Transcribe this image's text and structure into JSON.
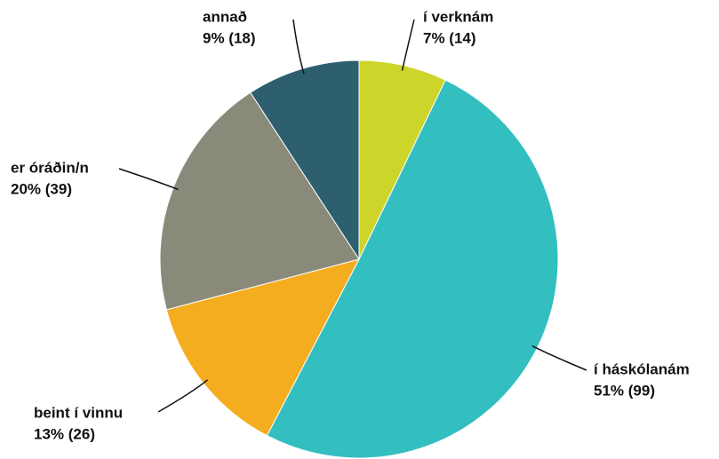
{
  "chart_data": {
    "type": "pie",
    "categories": [
      "í verknám",
      "í háskólanám",
      "beint í vinnu",
      "er óráðin/n",
      "annað"
    ],
    "values": [
      14,
      99,
      26,
      39,
      18
    ],
    "value_labels": [
      "7% (14)",
      "51% (99)",
      "13% (26)",
      "20% (39)",
      "9% (18)"
    ],
    "colors": [
      "#cdd42a",
      "#33bec0",
      "#f5ad20",
      "#8a8a7a",
      "#2d5f6e"
    ]
  }
}
